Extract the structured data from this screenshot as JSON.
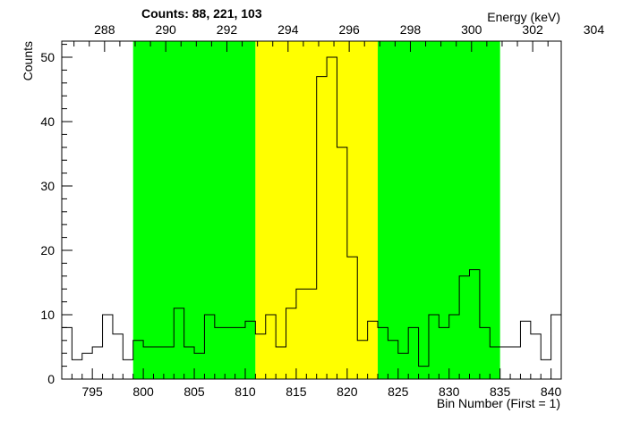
{
  "chart_data": {
    "type": "bar",
    "style": "step-histogram",
    "title": "Counts:   88,   221,   103",
    "xlabel": "Bin Number (First = 1)",
    "ylabel": "Counts",
    "x2label": "Energy (keV)",
    "xlim": [
      792,
      841
    ],
    "ylim": [
      0,
      52.5
    ],
    "yticks": [
      0,
      10,
      20,
      30,
      40,
      50
    ],
    "xticks": [
      795,
      800,
      805,
      810,
      815,
      820,
      825,
      830,
      835,
      840
    ],
    "energy_ticks": [
      288,
      290,
      292,
      294,
      296,
      298,
      300,
      302,
      304
    ],
    "energy_calibration": {
      "e0": 288,
      "bin0": 796.2,
      "bins_per_keV": 3
    },
    "bin_edges_start": 792,
    "bin_width": 1,
    "values": [
      8,
      3,
      4,
      5,
      10,
      7,
      3,
      6,
      5,
      5,
      5,
      11,
      5,
      4,
      10,
      8,
      8,
      8,
      9,
      7,
      10,
      5,
      11,
      14,
      14,
      47,
      50,
      36,
      19,
      6,
      9,
      8,
      6,
      4,
      8,
      2,
      10,
      8,
      10,
      16,
      17,
      8,
      5,
      5,
      5,
      9,
      7,
      3,
      10,
      8,
      10,
      7
    ],
    "regions": [
      {
        "name": "background-left",
        "from": 799,
        "to": 811,
        "color": "#00ff00"
      },
      {
        "name": "peak",
        "from": 811,
        "to": 823,
        "color": "#ffff00"
      },
      {
        "name": "background-right",
        "from": 823,
        "to": 835,
        "color": "#00ff00"
      }
    ],
    "line_color": "#000000",
    "grid": false
  }
}
